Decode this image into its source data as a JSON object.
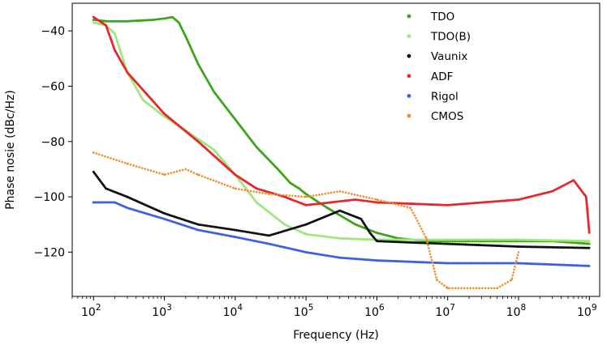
{
  "chart_data": {
    "type": "scatter",
    "title": "",
    "xlabel": "Frequency (Hz)",
    "ylabel": "Phase nosie (dBc/Hz)",
    "xscale": "log",
    "xlim": [
      50,
      1400000000
    ],
    "ylim": [
      -136,
      -30
    ],
    "grid": false,
    "legend_position": "top-right",
    "xticks": [
      {
        "value": 100,
        "base": "10",
        "exp": "2"
      },
      {
        "value": 1000,
        "base": "10",
        "exp": "3"
      },
      {
        "value": 10000,
        "base": "10",
        "exp": "4"
      },
      {
        "value": 100000,
        "base": "10",
        "exp": "5"
      },
      {
        "value": 1000000,
        "base": "10",
        "exp": "6"
      },
      {
        "value": 10000000,
        "base": "10",
        "exp": "7"
      },
      {
        "value": 100000000,
        "base": "10",
        "exp": "8"
      },
      {
        "value": 1000000000,
        "base": "10",
        "exp": "9"
      }
    ],
    "yticks": [
      {
        "value": -40,
        "label": "−40"
      },
      {
        "value": -60,
        "label": "−60"
      },
      {
        "value": -80,
        "label": "−80"
      },
      {
        "value": -100,
        "label": "−100"
      },
      {
        "value": -120,
        "label": "−120"
      }
    ],
    "series": [
      {
        "name": "TDO",
        "color": "#3aa519",
        "x": [
          100,
          150,
          300,
          700,
          1000,
          1300,
          1600,
          2000,
          3000,
          5000,
          10000,
          20000,
          40000,
          60000,
          80000,
          100000,
          200000,
          500000,
          1000000,
          2000000,
          5000000,
          10000000,
          30000000,
          100000000,
          300000000,
          1000000000
        ],
        "y": [
          -36,
          -36.5,
          -36.5,
          -36,
          -35.5,
          -35,
          -37,
          -42,
          -52,
          -62,
          -72,
          -82,
          -90,
          -95,
          -97,
          -99,
          -104,
          -110,
          -113,
          -115,
          -116,
          -116,
          -116,
          -116,
          -116,
          -117
        ]
      },
      {
        "name": "TDO(B)",
        "color": "#a0e57f",
        "x": [
          100,
          150,
          200,
          300,
          500,
          1000,
          2000,
          5000,
          10000,
          20000,
          50000,
          100000,
          300000,
          1000000,
          10000000,
          100000000,
          1000000000
        ],
        "y": [
          -37,
          -38,
          -41,
          -55,
          -65,
          -71,
          -76,
          -83,
          -92,
          -102,
          -110,
          -113.5,
          -115,
          -115.5,
          -115.5,
          -115.5,
          -116
        ]
      },
      {
        "name": "Vaunix",
        "color": "#111111",
        "x": [
          100,
          150,
          300,
          1000,
          3000,
          10000,
          30000,
          100000,
          300000,
          600000,
          800000,
          1000000,
          3000000,
          10000000,
          100000000,
          1000000000
        ],
        "y": [
          -91,
          -97,
          -100,
          -106,
          -110,
          -112,
          -114,
          -110,
          -105,
          -108,
          -113,
          -116,
          -116.5,
          -117,
          -118,
          -118.5
        ]
      },
      {
        "name": "ADF",
        "color": "#e5262a",
        "x": [
          100,
          150,
          200,
          300,
          1000,
          3000,
          10000,
          20000,
          50000,
          100000,
          500000,
          1000000,
          10000000,
          100000000,
          300000000,
          600000000,
          900000000,
          1000000000
        ],
        "y": [
          -35,
          -38,
          -47,
          -55,
          -70,
          -80,
          -92,
          -97,
          -100,
          -103,
          -101,
          -102,
          -103,
          -101,
          -98,
          -94,
          -100,
          -113
        ]
      },
      {
        "name": "Rigol",
        "color": "#3d5fe0",
        "x": [
          100,
          200,
          300,
          1000,
          3000,
          10000,
          30000,
          100000,
          300000,
          1000000,
          10000000,
          100000000,
          1000000000
        ],
        "y": [
          -102,
          -102,
          -104,
          -108,
          -112,
          -114.5,
          -117,
          -120,
          -122,
          -123,
          -124,
          -124,
          -125
        ]
      },
      {
        "name": "CMOS",
        "color": "#ef8f2c",
        "x": [
          100,
          300,
          1000,
          2000,
          3000,
          10000,
          30000,
          100000,
          300000,
          1000000,
          3000000,
          5000000,
          7000000,
          10000000,
          50000000,
          80000000,
          100000000
        ],
        "y": [
          -84,
          -88,
          -92,
          -90,
          -92,
          -97,
          -99,
          -100,
          -98,
          -101,
          -104,
          -115,
          -130,
          -133,
          -133,
          -130,
          -120
        ]
      }
    ]
  }
}
